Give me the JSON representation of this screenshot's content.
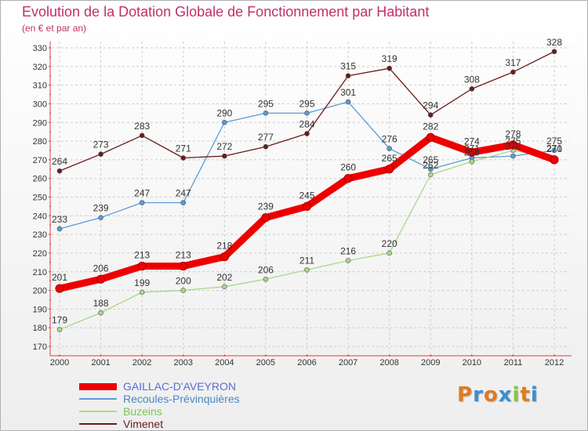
{
  "header": {
    "title": "Evolution de la Dotation Globale de Fonctionnement par Habitant",
    "subtitle": "(en € et par an)"
  },
  "logo": {
    "text": "Proxiti",
    "colors": [
      "#e07b1f",
      "#3a8fd0",
      "#e07b1f",
      "#3a8fd0",
      "#8bc34a",
      "#e07b1f",
      "#3a8fd0"
    ]
  },
  "colors": {
    "title": "#c0306a",
    "axis_red": "#e04040",
    "grid": "#cccccc"
  },
  "chart_data": {
    "type": "line",
    "title": "Evolution de la Dotation Globale de Fonctionnement par Habitant",
    "subtitle": "(en € et par an)",
    "xlabel": "",
    "ylabel": "",
    "categories": [
      "2000",
      "2001",
      "2002",
      "2003",
      "2004",
      "2005",
      "2006",
      "2007",
      "2008",
      "2009",
      "2010",
      "2011",
      "2012"
    ],
    "ylim": [
      170,
      330
    ],
    "yticks": [
      170,
      180,
      190,
      200,
      210,
      220,
      230,
      240,
      250,
      260,
      270,
      280,
      290,
      300,
      310,
      320,
      330
    ],
    "grid": true,
    "legend_position": "bottom-left",
    "series": [
      {
        "name": "GAILLAC-D'AVEYRON",
        "color": "#ee0000",
        "weight": "thick",
        "values": [
          201,
          206,
          213,
          213,
          218,
          239,
          245,
          260,
          265,
          282,
          274,
          278,
          270
        ]
      },
      {
        "name": "Recoules-Prévinquières",
        "color": "#5b9bd5",
        "weight": "thin",
        "values": [
          233,
          239,
          247,
          247,
          290,
          295,
          295,
          301,
          276,
          265,
          271,
          272,
          275
        ]
      },
      {
        "name": "Buzeins",
        "color": "#a8d88a",
        "weight": "thin",
        "values": [
          179,
          188,
          199,
          200,
          202,
          206,
          211,
          216,
          220,
          262,
          269,
          275,
          271
        ]
      },
      {
        "name": "Vimenet",
        "color": "#6b1a1a",
        "weight": "thin",
        "values": [
          264,
          273,
          283,
          271,
          272,
          277,
          284,
          315,
          319,
          294,
          308,
          317,
          328
        ]
      }
    ]
  }
}
